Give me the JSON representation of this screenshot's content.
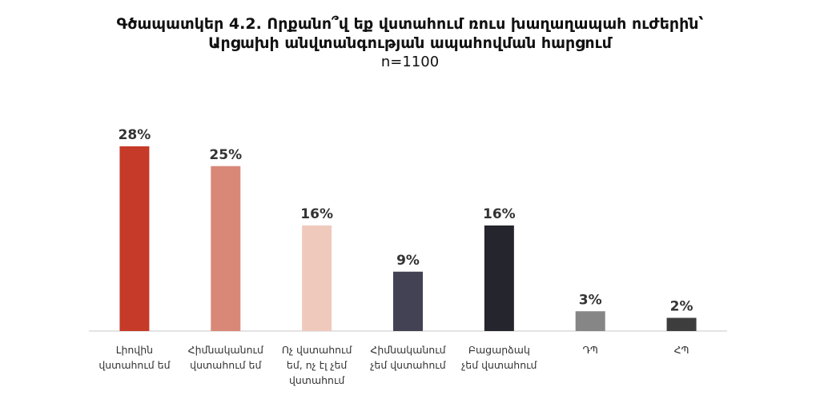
{
  "title": {
    "line1": "Գծապատկեր 4.2. Որքանո՞վ եք վստահում ռուս խաղաղապահ ուժերին՝",
    "line2": "Արցախի անվտանգության ապահովման հարցում",
    "subtitle": "n=1100"
  },
  "chart_data": {
    "type": "bar",
    "title": "Գծապատկեր 4.2. Որքանո՞վ եք վստահում ռուս խաղաղապահ ուժերին՝ Արցախի անվտանգության ապահովման հարցում",
    "subtitle": "n=1100",
    "categories": [
      [
        "Լիովին",
        "վստահում եմ"
      ],
      [
        "Հիմնականում",
        "վստահում եմ"
      ],
      [
        "Ոչ վստահում",
        "եմ, ոչ էլ չեմ",
        "վստահում"
      ],
      [
        "Հիմնականում",
        "չեմ վստահում"
      ],
      [
        "Բացարձակ",
        "չեմ վստահում"
      ],
      [
        "ԴՊ"
      ],
      [
        "ՀՊ"
      ]
    ],
    "values": [
      28,
      25,
      16,
      9,
      16,
      3,
      2
    ],
    "data_labels": [
      "28%",
      "25%",
      "16%",
      "9%",
      "16%",
      "3%",
      "2%"
    ],
    "bar_colors": [
      "#c53a28",
      "#d98878",
      "#f0c9bd",
      "#434154",
      "#24252d",
      "#868686",
      "#3d3d3d"
    ],
    "ylim": [
      0,
      30
    ],
    "grid": false,
    "legend": "none"
  }
}
